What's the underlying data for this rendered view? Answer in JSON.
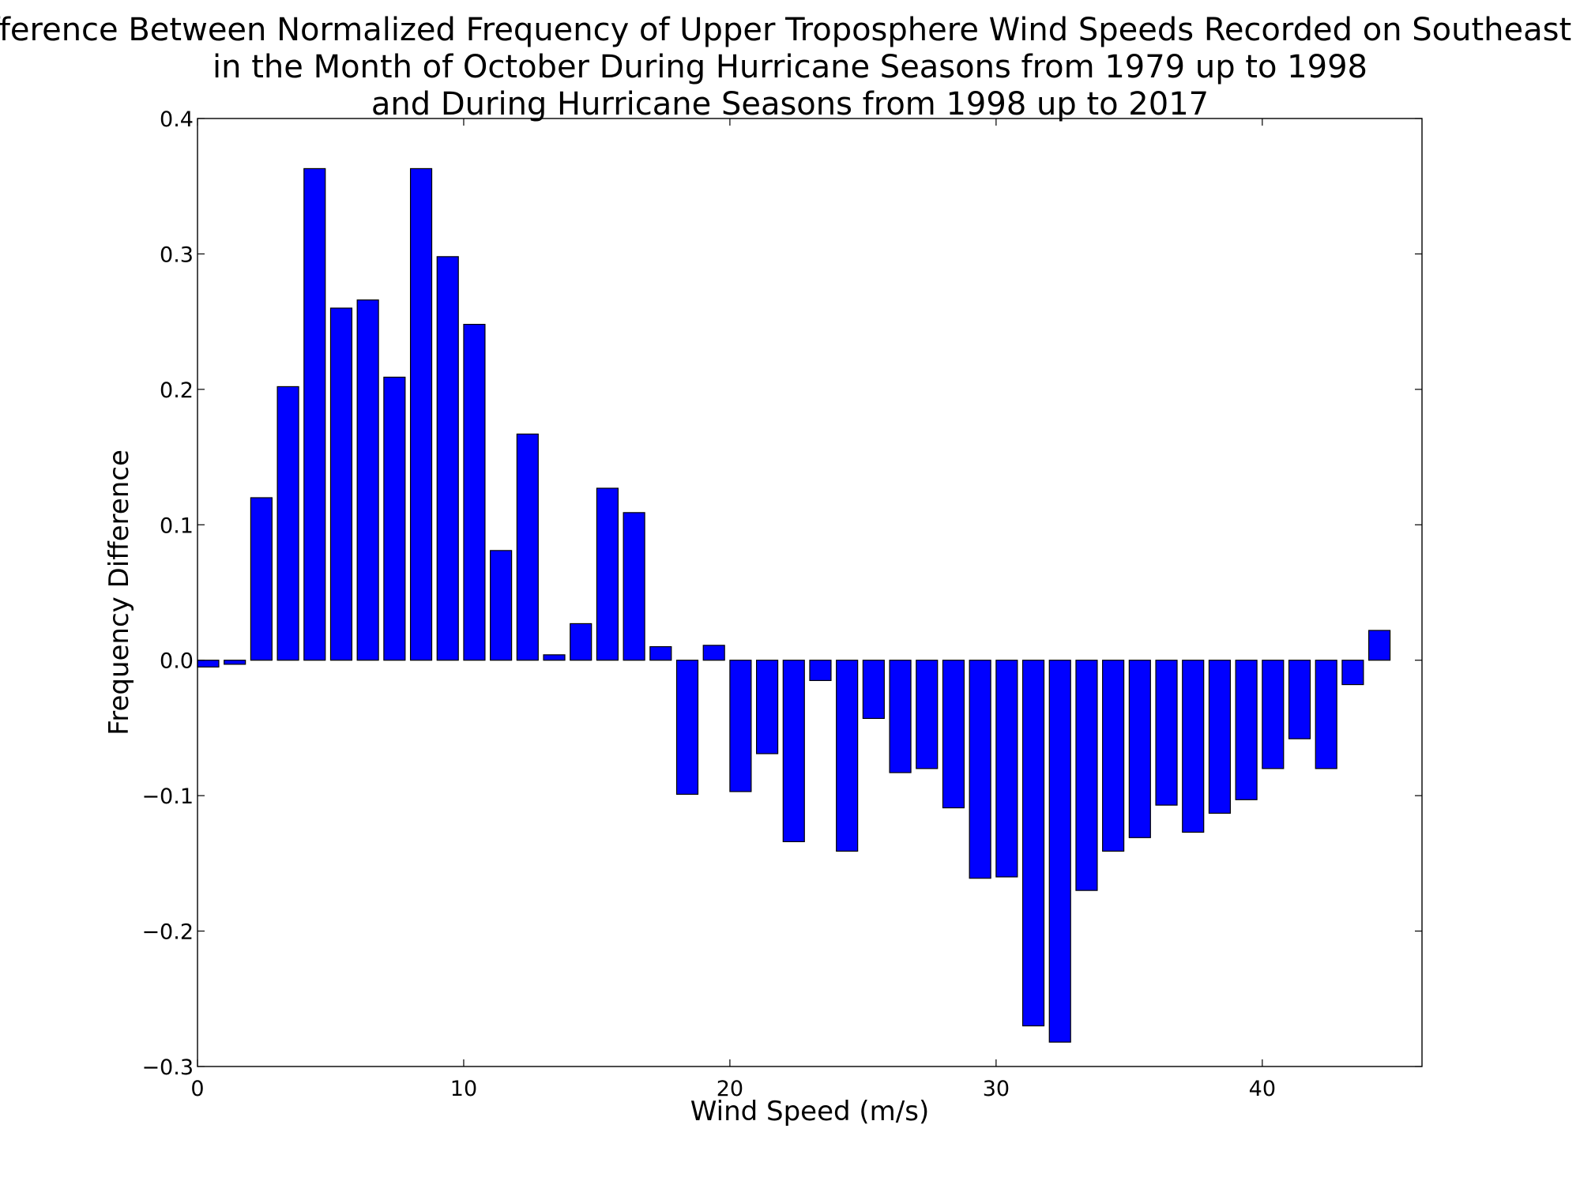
{
  "chart_data": {
    "type": "bar",
    "title_lines": [
      "Difference Between Normalized Frequency of Upper Troposphere Wind Speeds Recorded on Southeast US",
      "in the Month of October During Hurricane Seasons from 1979 up to 1998",
      "and During Hurricane Seasons from 1998 up to 2017"
    ],
    "xlabel": "Wind Speed (m/s)",
    "ylabel": "Frequency Difference",
    "xlim": [
      0,
      46
    ],
    "ylim": [
      -0.3,
      0.4
    ],
    "xticks": [
      0,
      10,
      20,
      30,
      40
    ],
    "xtick_labels": [
      "0",
      "10",
      "20",
      "30",
      "40"
    ],
    "yticks": [
      -0.3,
      -0.2,
      -0.1,
      0.0,
      0.1,
      0.2,
      0.3,
      0.4
    ],
    "ytick_labels": [
      "−0.3",
      "−0.2",
      "−0.1",
      "0.0",
      "0.1",
      "0.2",
      "0.3",
      "0.4"
    ],
    "bar_width": 0.8,
    "bar_color": "#0000ff",
    "grid": false,
    "bars": [
      {
        "x": 0,
        "value": -0.005
      },
      {
        "x": 1,
        "value": -0.003
      },
      {
        "x": 2,
        "value": 0.12
      },
      {
        "x": 3,
        "value": 0.202
      },
      {
        "x": 4,
        "value": 0.363
      },
      {
        "x": 5,
        "value": 0.26
      },
      {
        "x": 6,
        "value": 0.266
      },
      {
        "x": 7,
        "value": 0.209
      },
      {
        "x": 8,
        "value": 0.363
      },
      {
        "x": 9,
        "value": 0.298
      },
      {
        "x": 10,
        "value": 0.248
      },
      {
        "x": 11,
        "value": 0.081
      },
      {
        "x": 12,
        "value": 0.167
      },
      {
        "x": 13,
        "value": 0.004
      },
      {
        "x": 14,
        "value": 0.027
      },
      {
        "x": 15,
        "value": 0.127
      },
      {
        "x": 16,
        "value": 0.109
      },
      {
        "x": 17,
        "value": 0.01
      },
      {
        "x": 18,
        "value": -0.099
      },
      {
        "x": 19,
        "value": 0.011
      },
      {
        "x": 20,
        "value": -0.097
      },
      {
        "x": 21,
        "value": -0.069
      },
      {
        "x": 22,
        "value": -0.134
      },
      {
        "x": 23,
        "value": -0.015
      },
      {
        "x": 24,
        "value": -0.141
      },
      {
        "x": 25,
        "value": -0.043
      },
      {
        "x": 26,
        "value": -0.083
      },
      {
        "x": 27,
        "value": -0.08
      },
      {
        "x": 28,
        "value": -0.109
      },
      {
        "x": 29,
        "value": -0.161
      },
      {
        "x": 30,
        "value": -0.16
      },
      {
        "x": 31,
        "value": -0.27
      },
      {
        "x": 32,
        "value": -0.282
      },
      {
        "x": 33,
        "value": -0.17
      },
      {
        "x": 34,
        "value": -0.141
      },
      {
        "x": 35,
        "value": -0.131
      },
      {
        "x": 36,
        "value": -0.107
      },
      {
        "x": 37,
        "value": -0.127
      },
      {
        "x": 38,
        "value": -0.113
      },
      {
        "x": 39,
        "value": -0.103
      },
      {
        "x": 40,
        "value": -0.08
      },
      {
        "x": 41,
        "value": -0.058
      },
      {
        "x": 42,
        "value": -0.08
      },
      {
        "x": 43,
        "value": -0.018
      },
      {
        "x": 44,
        "value": 0.022
      }
    ]
  }
}
